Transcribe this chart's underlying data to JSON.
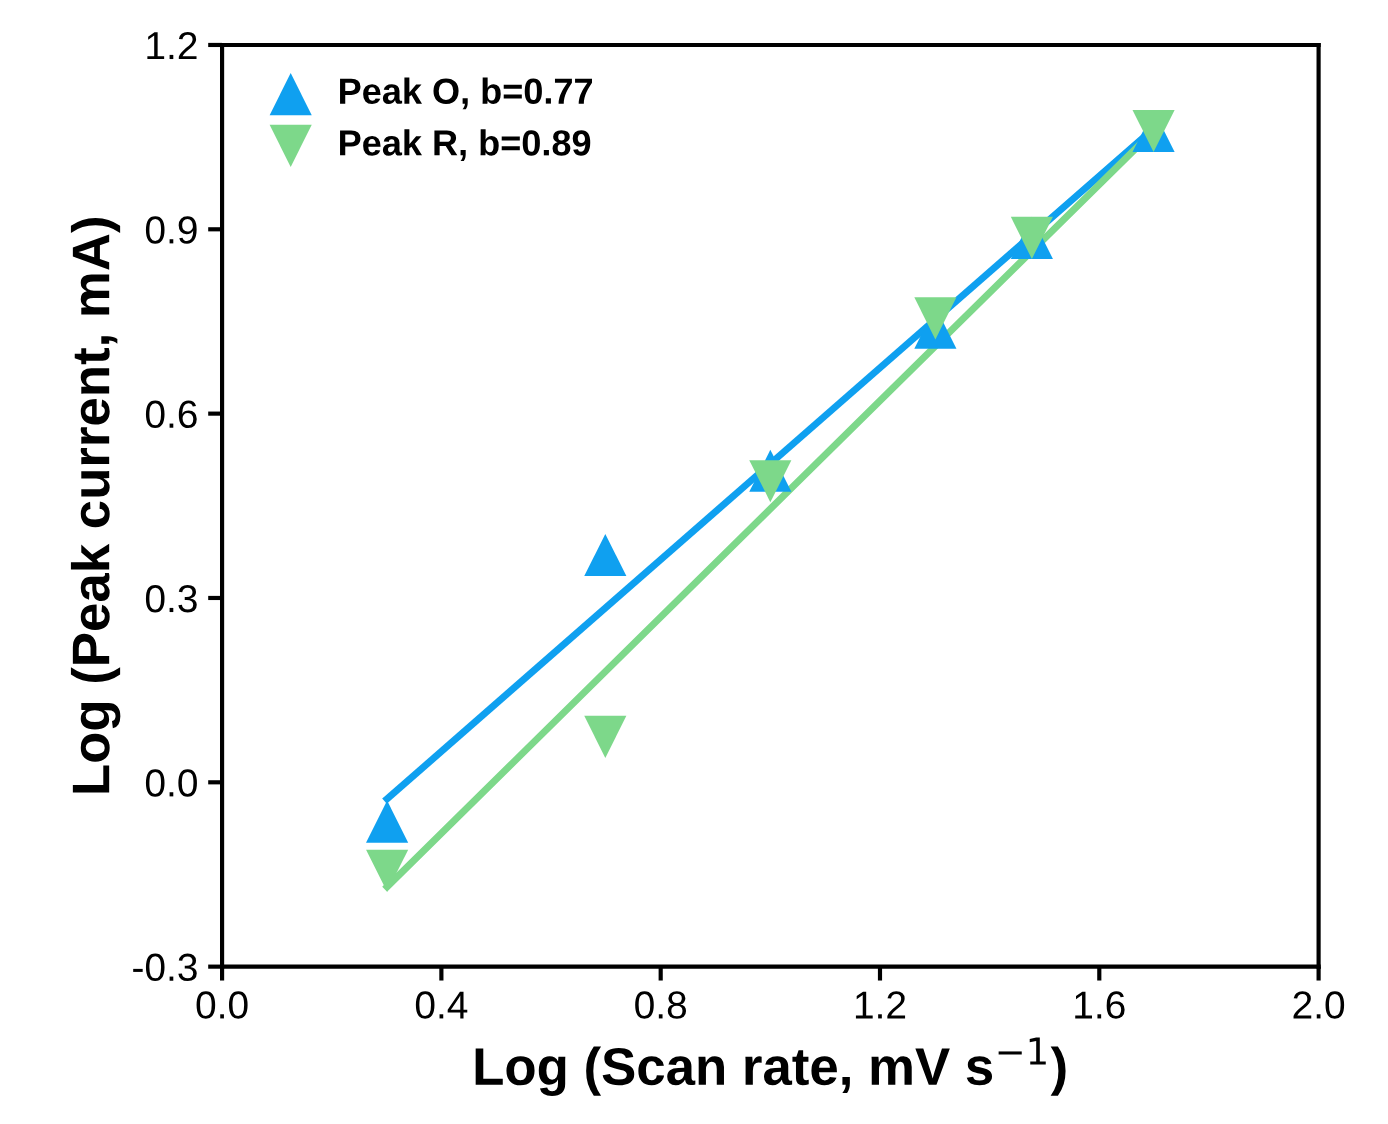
{
  "chart_data": {
    "type": "scatter",
    "xlabel": "Log (Scan rate, mV s$^{−1}$)",
    "ylabel": "Log (Peak current, mA)",
    "xlim": [
      0.0,
      2.0
    ],
    "xticks": [
      {
        "value": 0,
        "label": "0.0"
      },
      0.4,
      0.8,
      1.2,
      1.6,
      {
        "value": 2,
        "label": "2.0"
      }
    ],
    "ylim": [
      -0.3,
      1.2
    ],
    "yticks": [
      -0.3,
      {
        "value": 0,
        "label": "0.0"
      },
      0.3,
      0.6,
      0.9,
      1.2
    ],
    "grid": false,
    "legend": "top left",
    "series": [
      {
        "name": "Peak O, b=0.77",
        "marker": "triangle",
        "color": "#0fa0f0",
        "x": [
          0.301,
          0.699,
          1.0,
          1.301,
          1.477,
          1.699
        ],
        "values": [
          -0.064,
          0.37,
          0.507,
          0.74,
          0.886,
          1.06
        ]
      },
      {
        "name": "Peak R, b=0.89",
        "marker": "triangle_down",
        "color": "#7dd88a",
        "x": [
          0.301,
          0.699,
          1.0,
          1.301,
          1.477,
          1.699
        ],
        "values": [
          -0.144,
          0.074,
          0.49,
          0.755,
          0.886,
          1.06
        ]
      },
      {
        "type": "line",
        "color": "#0fa0f0",
        "x": [
          0.301,
          1.699
        ],
        "values": [
          -0.027,
          1.064
        ]
      },
      {
        "type": "line",
        "color": "#7dd88a",
        "x": [
          0.301,
          1.699
        ],
        "values": [
          -0.17,
          1.06
        ]
      }
    ]
  }
}
